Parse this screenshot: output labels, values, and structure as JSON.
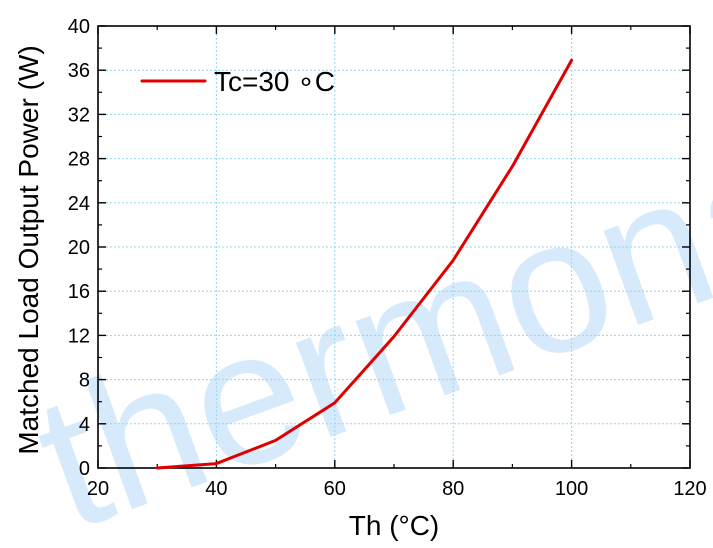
{
  "chart_data": {
    "type": "line",
    "x": [
      30,
      40,
      50,
      60,
      70,
      80,
      90,
      100
    ],
    "series": [
      {
        "name": "Tc=30 °C",
        "legend_label": "Tc=30 ∘C",
        "values": [
          0.0,
          0.4,
          2.5,
          5.9,
          11.9,
          18.8,
          27.3,
          36.9
        ],
        "color": "#e00000"
      }
    ],
    "xlabel": "Th (°C)",
    "ylabel": "Matched Load Output Power (W)",
    "xlim": [
      20,
      120
    ],
    "ylim": [
      0,
      40
    ],
    "x_ticks": [
      20,
      40,
      60,
      80,
      100,
      120
    ],
    "y_ticks": [
      0,
      4,
      8,
      12,
      16,
      20,
      24,
      28,
      32,
      36,
      40
    ],
    "grid": true,
    "legend_position": "top-left"
  },
  "watermark_text": "thermonamic",
  "colors": {
    "grid": "#8ed8ef",
    "axis": "#000000",
    "watermark": "#c9e3fb"
  }
}
